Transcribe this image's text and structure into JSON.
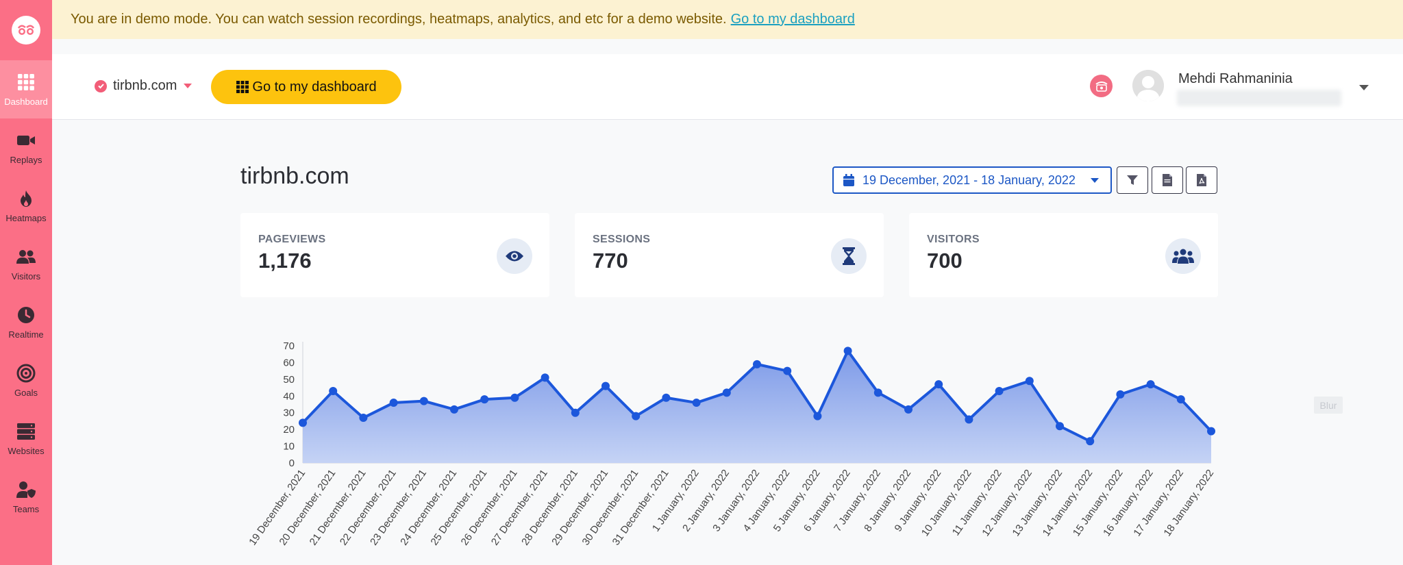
{
  "banner": {
    "message": "You are in demo mode. You can watch session recordings, heatmaps, analytics, and etc for a demo website.",
    "link_label": "Go to my dashboard"
  },
  "sidebar": {
    "items": [
      {
        "label": "Dashboard",
        "icon": "grid-icon"
      },
      {
        "label": "Replays",
        "icon": "video-camera-icon"
      },
      {
        "label": "Heatmaps",
        "icon": "flame-icon"
      },
      {
        "label": "Visitors",
        "icon": "users-icon"
      },
      {
        "label": "Realtime",
        "icon": "clock-icon"
      },
      {
        "label": "Goals",
        "icon": "target-icon"
      },
      {
        "label": "Websites",
        "icon": "server-icon"
      },
      {
        "label": "Teams",
        "icon": "team-shield-icon"
      }
    ]
  },
  "header": {
    "site": "tirbnb.com",
    "dashboard_button": "Go to my dashboard",
    "user_name": "Mehdi Rahmaninia"
  },
  "main": {
    "title": "tirbnb.com",
    "date_range": "19 December, 2021 - 18 January, 2022",
    "blur_label": "Blur"
  },
  "stats": [
    {
      "label": "PAGEVIEWS",
      "value": "1,176",
      "icon": "eye-icon"
    },
    {
      "label": "SESSIONS",
      "value": "770",
      "icon": "hourglass-icon"
    },
    {
      "label": "VISITORS",
      "value": "700",
      "icon": "users-icon"
    }
  ],
  "colors": {
    "sidebar": "#fb6f86",
    "accent_yellow": "#fdc30e",
    "primary_blue": "#1c57c5",
    "chart_line": "#1c57db"
  },
  "chart_data": {
    "type": "area",
    "categories": [
      "19 December, 2021",
      "20 December, 2021",
      "21 December, 2021",
      "22 December, 2021",
      "23 December, 2021",
      "24 December, 2021",
      "25 December, 2021",
      "26 December, 2021",
      "27 December, 2021",
      "28 December, 2021",
      "29 December, 2021",
      "30 December, 2021",
      "31 December, 2021",
      "1 January, 2022",
      "2 January, 2022",
      "3 January, 2022",
      "4 January, 2022",
      "5 January, 2022",
      "6 January, 2022",
      "7 January, 2022",
      "8 January, 2022",
      "9 January, 2022",
      "10 January, 2022",
      "11 January, 2022",
      "12 January, 2022",
      "13 January, 2022",
      "14 January, 2022",
      "15 January, 2022",
      "16 January, 2022",
      "17 January, 2022",
      "18 January, 2022"
    ],
    "values": [
      24,
      43,
      27,
      36,
      37,
      32,
      38,
      39,
      51,
      30,
      46,
      28,
      39,
      36,
      42,
      59,
      55,
      28,
      67,
      42,
      32,
      47,
      26,
      43,
      49,
      22,
      13,
      41,
      47,
      38,
      19
    ],
    "ylim": [
      0,
      70
    ],
    "yticks": [
      0,
      10,
      20,
      30,
      40,
      50,
      60,
      70
    ],
    "grid": false
  }
}
